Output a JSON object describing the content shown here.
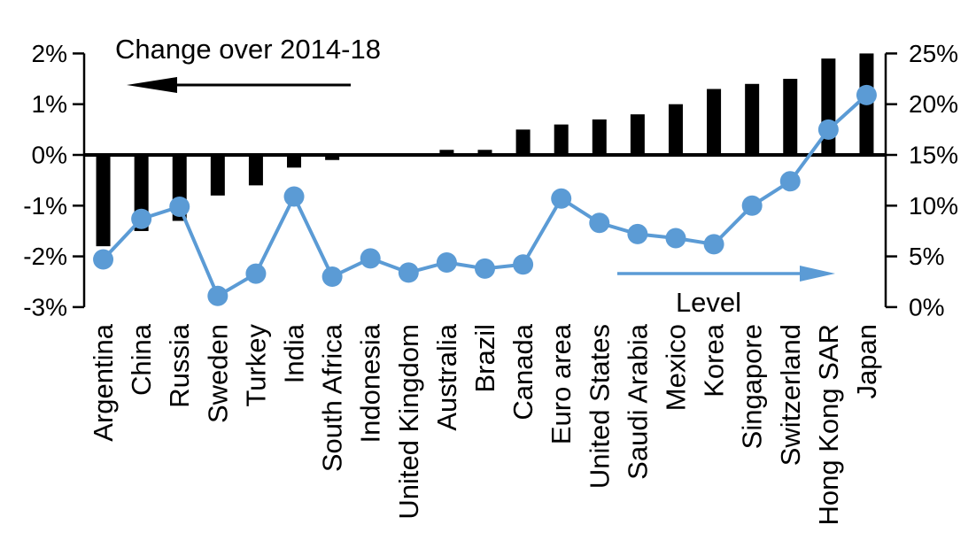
{
  "chart_data": {
    "type": "combo",
    "title": "",
    "categories": [
      "Argentina",
      "China",
      "Russia",
      "Sweden",
      "Turkey",
      "India",
      "South Africa",
      "Indonesia",
      "United Kingdom",
      "Australia",
      "Brazil",
      "Canada",
      "Euro area",
      "United States",
      "Saudi Arabia",
      "Mexico",
      "Korea",
      "Singapore",
      "Switzerland",
      "Hong Kong SAR",
      "Japan"
    ],
    "series": [
      {
        "name": "Change over 2014-18",
        "type": "bar",
        "axis": "left",
        "color": "#000000",
        "values": [
          -1.8,
          -1.5,
          -1.3,
          -0.8,
          -0.6,
          -0.25,
          -0.1,
          0,
          0,
          0.1,
          0.1,
          0.5,
          0.6,
          0.7,
          0.8,
          1.0,
          1.3,
          1.4,
          1.5,
          1.9,
          2.0
        ]
      },
      {
        "name": "Level",
        "type": "line",
        "axis": "right",
        "color": "#5B9BD5",
        "values": [
          4.7,
          8.7,
          9.9,
          1.1,
          3.3,
          10.9,
          3.0,
          4.8,
          3.4,
          4.4,
          3.8,
          4.2,
          10.7,
          8.3,
          7.2,
          6.8,
          6.2,
          10.0,
          12.4,
          17.5,
          20.9
        ]
      }
    ],
    "left_axis": {
      "unit": "%",
      "min": -3,
      "max": 2,
      "tick_step": 1,
      "tick_labels": [
        "2%",
        "1%",
        "0%",
        "-1%",
        "-2%",
        "-3%"
      ]
    },
    "right_axis": {
      "unit": "%",
      "min": 0,
      "max": 25,
      "tick_step": 5,
      "tick_labels": [
        "25%",
        "20%",
        "15%",
        "10%",
        "5%",
        "0%"
      ]
    },
    "annotations": {
      "left_series_label": "Change over 2014-18",
      "right_series_label": "Level",
      "left_arrow_direction": "left",
      "right_arrow_direction": "right"
    },
    "grid": false,
    "legend_position": "in-plot annotations with arrows"
  },
  "colors": {
    "bar": "#000000",
    "line": "#5B9BD5",
    "axis": "#000000",
    "background": "#ffffff"
  }
}
